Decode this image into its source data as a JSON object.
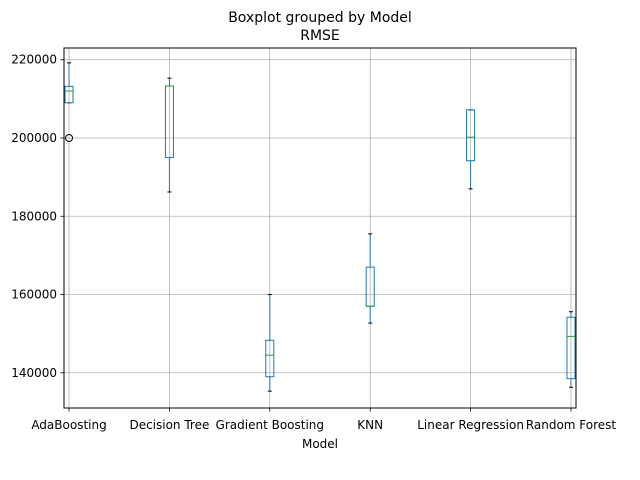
{
  "chart_data": {
    "type": "box",
    "suptitle": "Boxplot grouped by Model",
    "title": "RMSE",
    "xlabel": "Model",
    "ylabel": "",
    "ylim": [
      131000,
      223000
    ],
    "yticks": [
      140000,
      160000,
      180000,
      200000,
      220000
    ],
    "ytick_labels": [
      "140000",
      "160000",
      "180000",
      "200000",
      "220000"
    ],
    "grid": true,
    "categories": [
      "AdaBoosting",
      "Decision Tree",
      "Gradient Boosting",
      "KNN",
      "Linear Regression",
      "Random Forest"
    ],
    "x": [
      1,
      2,
      3,
      4,
      5,
      6
    ],
    "xlim": [
      0.95,
      6.05
    ],
    "boxes": [
      {
        "whislo": 209000,
        "q1": 209000,
        "med": 212000,
        "q3": 213200,
        "whishi": 219200,
        "fliers": [
          200000
        ]
      },
      {
        "whislo": 186200,
        "q1": 195000,
        "med": 213300,
        "q3": 213300,
        "whishi": 215300,
        "fliers": []
      },
      {
        "whislo": 135300,
        "q1": 139000,
        "med": 144500,
        "q3": 148300,
        "whishi": 160000,
        "fliers": []
      },
      {
        "whislo": 152700,
        "q1": 157000,
        "med": 157000,
        "q3": 167000,
        "whishi": 175500,
        "fliers": []
      },
      {
        "whislo": 187000,
        "q1": 194200,
        "med": 200200,
        "q3": 207200,
        "whishi": 207200,
        "fliers": []
      },
      {
        "whislo": 136300,
        "q1": 138500,
        "med": 149300,
        "q3": 154200,
        "whishi": 155600,
        "fliers": []
      }
    ],
    "colors": {
      "box": "#1f77b4",
      "median": "#2ca02c",
      "grid": "#b0b0b0",
      "flier": "#000000"
    }
  }
}
